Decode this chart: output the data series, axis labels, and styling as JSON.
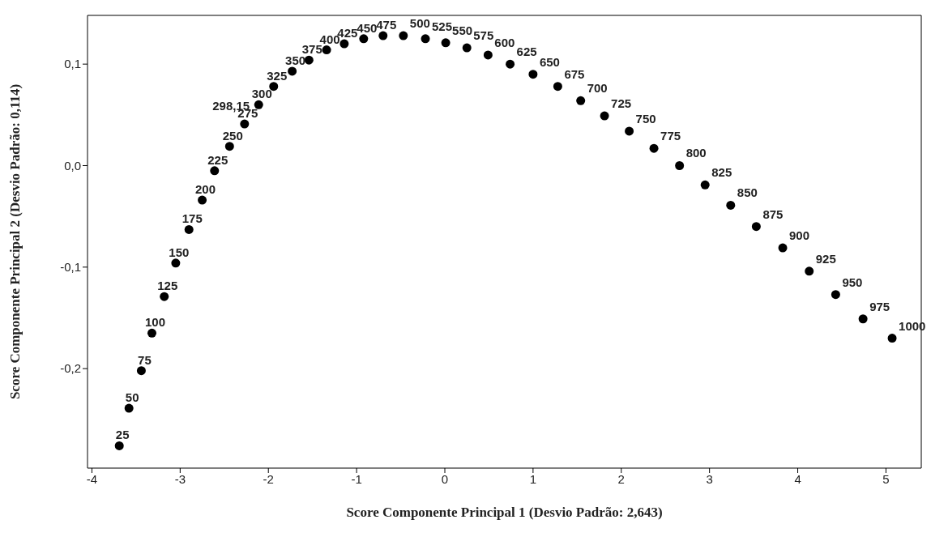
{
  "chart_data": {
    "type": "scatter",
    "xlabel": "Score Componente Principal 1 (Desvio Padrão: 2,643)",
    "ylabel": "Score Componente Principal 2 (Desvio Padrão: 0,114)",
    "xlim": [
      -4.05,
      5.4
    ],
    "xticks": [
      -4,
      -3,
      -2,
      -1,
      0,
      1,
      2,
      3,
      4,
      5
    ],
    "ylim": [
      -0.298,
      0.148
    ],
    "yticks": [
      {
        "value": -0.2,
        "label": "-0,2"
      },
      {
        "value": -0.1,
        "label": "-0,1"
      },
      {
        "value": 0,
        "label": "0,0"
      },
      {
        "value": 0.1,
        "label": "0,1"
      }
    ],
    "grid": false,
    "legend": false,
    "marker": "circle",
    "series": [
      {
        "color": "#000000",
        "x": [
          -3.69,
          -3.58,
          -3.44,
          -3.32,
          -3.18,
          -3.05,
          -2.9,
          -2.75,
          -2.61,
          -2.44,
          -2.27,
          -2.12,
          -2.11,
          -1.94,
          -1.73,
          -1.54,
          -1.34,
          -1.14,
          -0.92,
          -0.7,
          -0.47,
          -0.22,
          0.01,
          0.25,
          0.49,
          0.74,
          1.0,
          1.28,
          1.54,
          1.81,
          2.09,
          2.37,
          2.66,
          2.95,
          3.24,
          3.53,
          3.83,
          4.13,
          4.43,
          4.74,
          5.07
        ],
        "values": [
          -0.276,
          -0.239,
          -0.202,
          -0.165,
          -0.129,
          -0.096,
          -0.063,
          -0.034,
          -0.005,
          0.019,
          0.041,
          null,
          0.06,
          0.078,
          0.093,
          0.104,
          0.114,
          0.12,
          0.125,
          0.128,
          0.128,
          0.125,
          0.121,
          0.116,
          0.109,
          0.1,
          0.09,
          0.078,
          0.064,
          0.049,
          0.034,
          0.017,
          0.0,
          -0.019,
          -0.039,
          -0.06,
          -0.081,
          -0.104,
          -0.127,
          -0.151,
          -0.17
        ]
      }
    ],
    "annotations": [
      {
        "text": "25",
        "x": -3.69,
        "y": -0.276
      },
      {
        "text": "50",
        "x": -3.58,
        "y": -0.239
      },
      {
        "text": "75",
        "x": -3.44,
        "y": -0.202
      },
      {
        "text": "100",
        "x": -3.32,
        "y": -0.165
      },
      {
        "text": "125",
        "x": -3.18,
        "y": -0.129
      },
      {
        "text": "150",
        "x": -3.05,
        "y": -0.096
      },
      {
        "text": "175",
        "x": -2.9,
        "y": -0.063
      },
      {
        "text": "200",
        "x": -2.75,
        "y": -0.034
      },
      {
        "text": "225",
        "x": -2.61,
        "y": -0.005
      },
      {
        "text": "250",
        "x": -2.44,
        "y": 0.019
      },
      {
        "text": "275",
        "x": -2.27,
        "y": 0.041
      },
      {
        "text": "298,15",
        "x": -2.12,
        "y": 0.059
      },
      {
        "text": "300",
        "x": -2.11,
        "y": 0.06
      },
      {
        "text": "325",
        "x": -1.94,
        "y": 0.078
      },
      {
        "text": "350",
        "x": -1.73,
        "y": 0.093
      },
      {
        "text": "375",
        "x": -1.54,
        "y": 0.104
      },
      {
        "text": "400",
        "x": -1.34,
        "y": 0.114
      },
      {
        "text": "425",
        "x": -1.14,
        "y": 0.12
      },
      {
        "text": "450",
        "x": -0.92,
        "y": 0.125
      },
      {
        "text": "475",
        "x": -0.7,
        "y": 0.128
      },
      {
        "text": "500",
        "x": -0.47,
        "y": 0.128
      },
      {
        "text": "525",
        "x": -0.22,
        "y": 0.125
      },
      {
        "text": "550",
        "x": 0.01,
        "y": 0.121
      },
      {
        "text": "575",
        "x": 0.25,
        "y": 0.116
      },
      {
        "text": "600",
        "x": 0.49,
        "y": 0.109
      },
      {
        "text": "625",
        "x": 0.74,
        "y": 0.1
      },
      {
        "text": "650",
        "x": 1.0,
        "y": 0.09
      },
      {
        "text": "675",
        "x": 1.28,
        "y": 0.078
      },
      {
        "text": "700",
        "x": 1.54,
        "y": 0.064
      },
      {
        "text": "725",
        "x": 1.81,
        "y": 0.049
      },
      {
        "text": "750",
        "x": 2.09,
        "y": 0.034
      },
      {
        "text": "775",
        "x": 2.37,
        "y": 0.017
      },
      {
        "text": "800",
        "x": 2.66,
        "y": 0.0
      },
      {
        "text": "825",
        "x": 2.95,
        "y": -0.019
      },
      {
        "text": "850",
        "x": 3.24,
        "y": -0.039
      },
      {
        "text": "875",
        "x": 3.53,
        "y": -0.06
      },
      {
        "text": "900",
        "x": 3.83,
        "y": -0.081
      },
      {
        "text": "925",
        "x": 4.13,
        "y": -0.104
      },
      {
        "text": "950",
        "x": 4.43,
        "y": -0.127
      },
      {
        "text": "975",
        "x": 4.74,
        "y": -0.151
      },
      {
        "text": "1000",
        "x": 5.07,
        "y": -0.17
      }
    ]
  }
}
